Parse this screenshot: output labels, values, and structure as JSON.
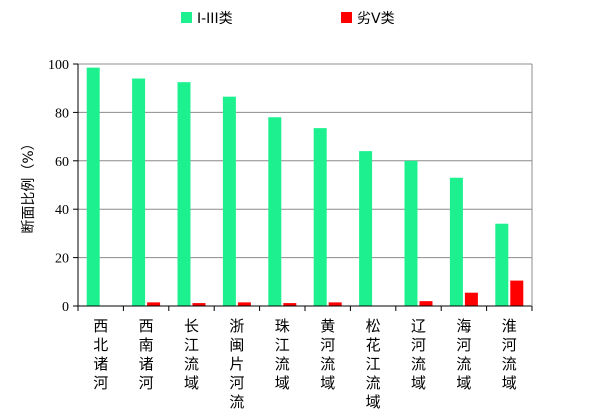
{
  "chart_data": {
    "type": "bar",
    "title": "",
    "xlabel": "",
    "ylabel": "断面比例（%）",
    "ylim": [
      0,
      100
    ],
    "yticks": [
      0,
      20,
      40,
      60,
      80,
      100
    ],
    "grid": true,
    "legend_position": "top",
    "categories": [
      "西北诸河",
      "西南诸河",
      "长江流域",
      "浙闽片河流",
      "珠江流域",
      "黄河流域",
      "松花江流域",
      "辽河流域",
      "海河流域",
      "淮河流域"
    ],
    "series": [
      {
        "name": "I-III类",
        "color": "#1cf08f",
        "values": [
          98.5,
          94,
          92.5,
          86.5,
          78,
          73.5,
          64,
          60,
          53,
          34
        ]
      },
      {
        "name": "劣V类",
        "color": "#ff0000",
        "values": [
          0,
          1.5,
          1.2,
          1.5,
          1.2,
          1.5,
          0,
          2,
          5.5,
          10.5
        ]
      }
    ]
  }
}
